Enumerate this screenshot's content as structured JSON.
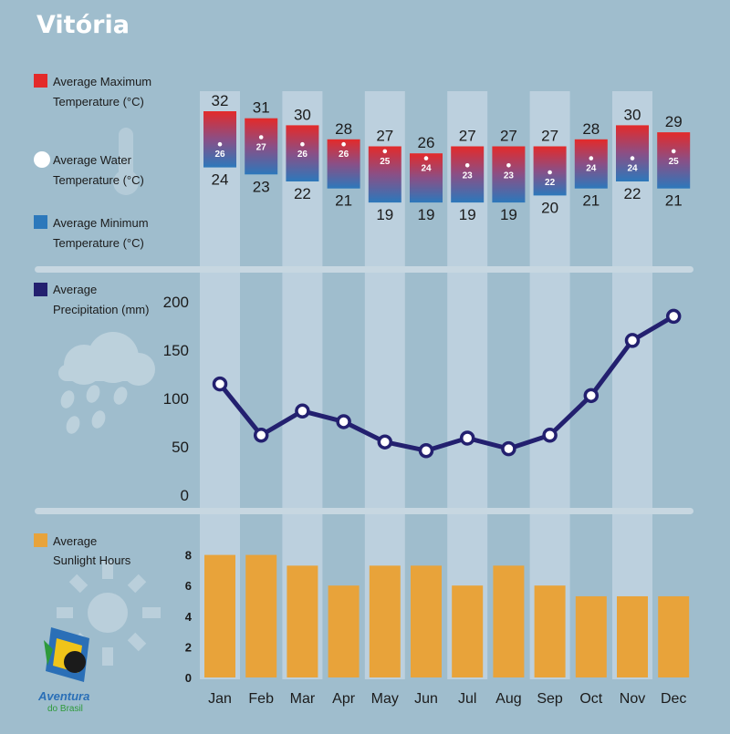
{
  "title": "Vitória",
  "colors": {
    "background": "#9fbdcd",
    "column_band": "#bcd0de",
    "max_temp": "#e32a2a",
    "min_temp": "#2c78bb",
    "water": "#ffffff",
    "precipitation": "#23206f",
    "sunlight": "#e8a33a",
    "divider": "#c7d7e1"
  },
  "legend": {
    "max_temp": [
      "Average Maximum",
      "Temperature (°C)"
    ],
    "water_temp": [
      "Average Water",
      "Temperature (°C)"
    ],
    "min_temp": [
      "Average Minimum",
      "Temperature (°C)"
    ],
    "precipitation": [
      "Average",
      "Precipitation (mm)"
    ],
    "sunlight": [
      "Average",
      "Sunlight Hours"
    ]
  },
  "brand": {
    "line1": "Aventura",
    "line2": "do Brasil"
  },
  "chart_data": [
    {
      "type": "range-bar",
      "categories": [
        "Jan",
        "Feb",
        "Mar",
        "Apr",
        "May",
        "Jun",
        "Jul",
        "Aug",
        "Sep",
        "Oct",
        "Nov",
        "Dec"
      ],
      "series": [
        {
          "name": "Average Maximum Temperature (°C)",
          "values": [
            32,
            31,
            30,
            28,
            27,
            26,
            27,
            27,
            27,
            28,
            30,
            29
          ]
        },
        {
          "name": "Average Minimum Temperature (°C)",
          "values": [
            24,
            23,
            22,
            21,
            19,
            19,
            19,
            19,
            20,
            21,
            22,
            21
          ]
        },
        {
          "name": "Average Water Temperature (°C)",
          "values": [
            26,
            27,
            26,
            26,
            25,
            24,
            23,
            23,
            22,
            24,
            24,
            25
          ]
        }
      ]
    },
    {
      "type": "line",
      "categories": [
        "Jan",
        "Feb",
        "Mar",
        "Apr",
        "May",
        "Jun",
        "Jul",
        "Aug",
        "Sep",
        "Oct",
        "Nov",
        "Dec"
      ],
      "series": [
        {
          "name": "Average Precipitation (mm)",
          "values": [
            115,
            62,
            87,
            76,
            55,
            46,
            59,
            48,
            62,
            103,
            160,
            185
          ]
        }
      ],
      "yticks": [
        0,
        50,
        100,
        150,
        200
      ],
      "ylim": [
        0,
        200
      ]
    },
    {
      "type": "bar",
      "categories": [
        "Jan",
        "Feb",
        "Mar",
        "Apr",
        "May",
        "Jun",
        "Jul",
        "Aug",
        "Sep",
        "Oct",
        "Nov",
        "Dec"
      ],
      "series": [
        {
          "name": "Average Sunlight Hours",
          "values": [
            8,
            8,
            7.3,
            6,
            7.3,
            7.3,
            6,
            7.3,
            6,
            5.3,
            5.3,
            5.3
          ]
        }
      ],
      "yticks": [
        0,
        2,
        4,
        6,
        8
      ],
      "ylim": [
        0,
        8
      ]
    }
  ]
}
